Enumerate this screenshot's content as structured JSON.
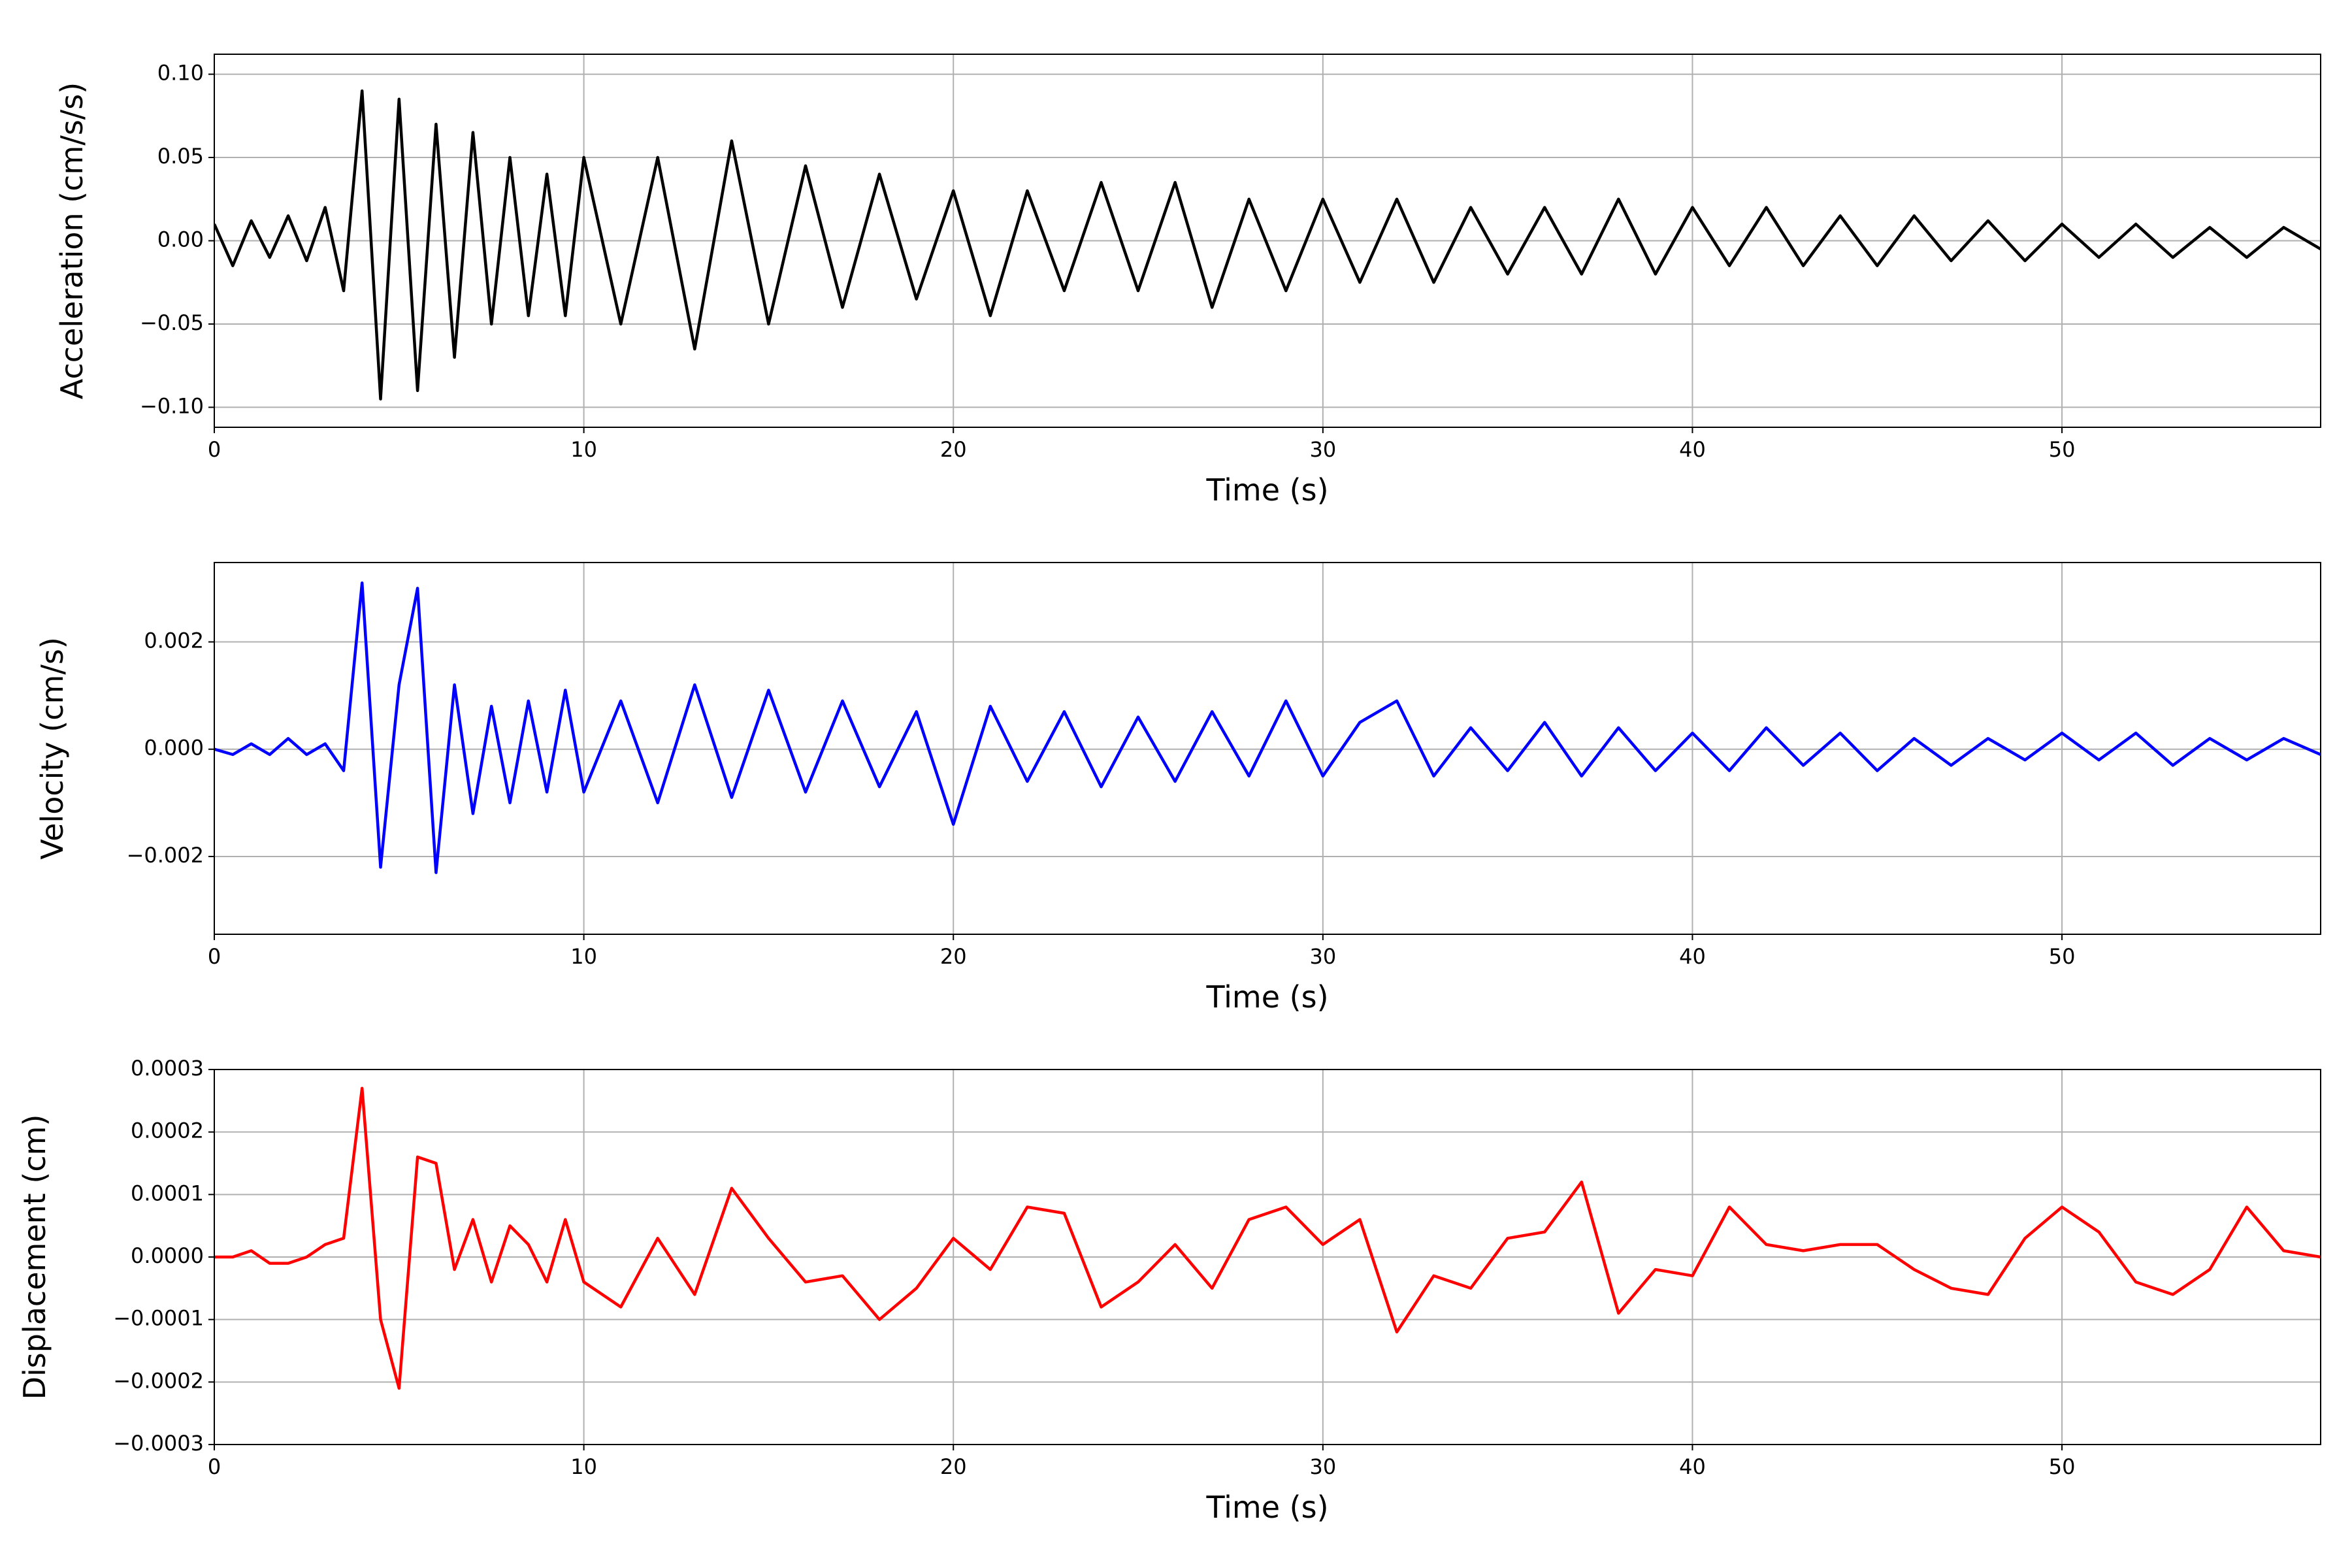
{
  "chart_data": [
    {
      "type": "line",
      "xlabel": "Time (s)",
      "ylabel": "Acceleration (cm/s/s)",
      "color": "#000000",
      "grid": true,
      "xlim": [
        0,
        57
      ],
      "xticks": [
        0,
        10,
        20,
        30,
        40,
        50
      ],
      "ylim": [
        -0.112,
        0.112
      ],
      "yticks": [
        {
          "value": -0.1,
          "label": "−0.10"
        },
        {
          "value": -0.05,
          "label": "−0.05"
        },
        {
          "value": 0,
          "label": "0.00"
        },
        {
          "value": 0.05,
          "label": "0.05"
        },
        {
          "value": 0.1,
          "label": "0.10"
        }
      ],
      "x": [
        0,
        0.5,
        1,
        1.5,
        2,
        2.5,
        3,
        3.5,
        4,
        4.5,
        5,
        5.5,
        6,
        6.5,
        7,
        7.5,
        8,
        8.5,
        9,
        9.5,
        10,
        11,
        12,
        13,
        14,
        15,
        16,
        17,
        18,
        19,
        20,
        21,
        22,
        23,
        24,
        25,
        26,
        27,
        28,
        29,
        30,
        31,
        32,
        33,
        34,
        35,
        36,
        37,
        38,
        39,
        40,
        41,
        42,
        43,
        44,
        45,
        46,
        47,
        48,
        49,
        50,
        51,
        52,
        53,
        54,
        55,
        56,
        57
      ],
      "values": [
        0.01,
        -0.015,
        0.012,
        -0.01,
        0.015,
        -0.012,
        0.02,
        -0.03,
        0.09,
        -0.095,
        0.085,
        -0.09,
        0.07,
        -0.07,
        0.065,
        -0.05,
        0.05,
        -0.045,
        0.04,
        -0.045,
        0.05,
        -0.05,
        0.05,
        -0.065,
        0.06,
        -0.05,
        0.045,
        -0.04,
        0.04,
        -0.035,
        0.03,
        -0.045,
        0.03,
        -0.03,
        0.035,
        -0.03,
        0.035,
        -0.04,
        0.025,
        -0.03,
        0.025,
        -0.025,
        0.025,
        -0.025,
        0.02,
        -0.02,
        0.02,
        -0.02,
        0.025,
        -0.02,
        0.02,
        -0.015,
        0.02,
        -0.015,
        0.015,
        -0.015,
        0.015,
        -0.012,
        0.012,
        -0.012,
        0.01,
        -0.01,
        0.01,
        -0.01,
        0.008,
        -0.01,
        0.008,
        -0.005
      ]
    },
    {
      "type": "line",
      "xlabel": "Time (s)",
      "ylabel": "Velocity (cm/s)",
      "color": "#0000ff",
      "grid": true,
      "xlim": [
        0,
        57
      ],
      "xticks": [
        0,
        10,
        20,
        30,
        40,
        50
      ],
      "ylim": [
        -0.00345,
        0.00348
      ],
      "yticks": [
        {
          "value": -0.002,
          "label": "−0.002"
        },
        {
          "value": 0,
          "label": "0.000"
        },
        {
          "value": 0.002,
          "label": "0.002"
        }
      ],
      "x": [
        0,
        0.5,
        1,
        1.5,
        2,
        2.5,
        3,
        3.5,
        4,
        4.5,
        5,
        5.5,
        6,
        6.5,
        7,
        7.5,
        8,
        8.5,
        9,
        9.5,
        10,
        11,
        12,
        13,
        14,
        15,
        16,
        17,
        18,
        19,
        20,
        21,
        22,
        23,
        24,
        25,
        26,
        27,
        28,
        29,
        30,
        31,
        32,
        33,
        34,
        35,
        36,
        37,
        38,
        39,
        40,
        41,
        42,
        43,
        44,
        45,
        46,
        47,
        48,
        49,
        50,
        51,
        52,
        53,
        54,
        55,
        56,
        57
      ],
      "values": [
        0,
        -0.0001,
        0.0001,
        -0.0001,
        0.0002,
        -0.0001,
        0.0001,
        -0.0004,
        0.0031,
        -0.0022,
        0.0012,
        0.003,
        -0.0023,
        0.0012,
        -0.0012,
        0.0008,
        -0.001,
        0.0009,
        -0.0008,
        0.0011,
        -0.0008,
        0.0009,
        -0.001,
        0.0012,
        -0.0009,
        0.0011,
        -0.0008,
        0.0009,
        -0.0007,
        0.0007,
        -0.0014,
        0.0008,
        -0.0006,
        0.0007,
        -0.0007,
        0.0006,
        -0.0006,
        0.0007,
        -0.0005,
        0.0009,
        -0.0005,
        0.0005,
        0.0009,
        -0.0005,
        0.0004,
        -0.0004,
        0.0005,
        -0.0005,
        0.0004,
        -0.0004,
        0.0003,
        -0.0004,
        0.0004,
        -0.0003,
        0.0003,
        -0.0004,
        0.0002,
        -0.0003,
        0.0002,
        -0.0002,
        0.0003,
        -0.0002,
        0.0003,
        -0.0003,
        0.0002,
        -0.0002,
        0.0002,
        -0.0001
      ]
    },
    {
      "type": "line",
      "xlabel": "Time (s)",
      "ylabel": "Displacement (cm)",
      "color": "#ff0000",
      "grid": true,
      "xlim": [
        0,
        57
      ],
      "xticks": [
        0,
        10,
        20,
        30,
        40,
        50
      ],
      "ylim": [
        -0.0003,
        0.0003
      ],
      "yticks": [
        {
          "value": -0.0003,
          "label": "−0.0003"
        },
        {
          "value": -0.0002,
          "label": "−0.0002"
        },
        {
          "value": -0.0001,
          "label": "−0.0001"
        },
        {
          "value": 0,
          "label": "0.0000"
        },
        {
          "value": 0.0001,
          "label": "0.0001"
        },
        {
          "value": 0.0002,
          "label": "0.0002"
        },
        {
          "value": 0.0003,
          "label": "0.0003"
        }
      ],
      "x": [
        0,
        0.5,
        1,
        1.5,
        2,
        2.5,
        3,
        3.5,
        4,
        4.5,
        5,
        5.5,
        6,
        6.5,
        7,
        7.5,
        8,
        8.5,
        9,
        9.5,
        10,
        11,
        12,
        13,
        14,
        15,
        16,
        17,
        18,
        19,
        20,
        21,
        22,
        23,
        24,
        25,
        26,
        27,
        28,
        29,
        30,
        31,
        32,
        33,
        34,
        35,
        36,
        37,
        38,
        39,
        40,
        41,
        42,
        43,
        44,
        45,
        46,
        47,
        48,
        49,
        50,
        51,
        52,
        53,
        54,
        55,
        56,
        57
      ],
      "values": [
        0,
        0,
        1e-05,
        -1e-05,
        -1e-05,
        0,
        2e-05,
        3e-05,
        0.00027,
        -0.0001,
        -0.00021,
        0.00016,
        0.00015,
        -2e-05,
        6e-05,
        -4e-05,
        5e-05,
        2e-05,
        -4e-05,
        6e-05,
        -4e-05,
        -8e-05,
        3e-05,
        -6e-05,
        0.00011,
        3e-05,
        -4e-05,
        -3e-05,
        -0.0001,
        -5e-05,
        3e-05,
        -2e-05,
        8e-05,
        7e-05,
        -8e-05,
        -4e-05,
        2e-05,
        -5e-05,
        6e-05,
        8e-05,
        2e-05,
        6e-05,
        -0.00012,
        -3e-05,
        -5e-05,
        3e-05,
        4e-05,
        0.00012,
        -9e-05,
        -2e-05,
        -3e-05,
        8e-05,
        2e-05,
        1e-05,
        2e-05,
        2e-05,
        -2e-05,
        -5e-05,
        -6e-05,
        3e-05,
        8e-05,
        4e-05,
        -4e-05,
        -6e-05,
        -2e-05,
        8e-05,
        1e-05,
        0
      ]
    }
  ]
}
